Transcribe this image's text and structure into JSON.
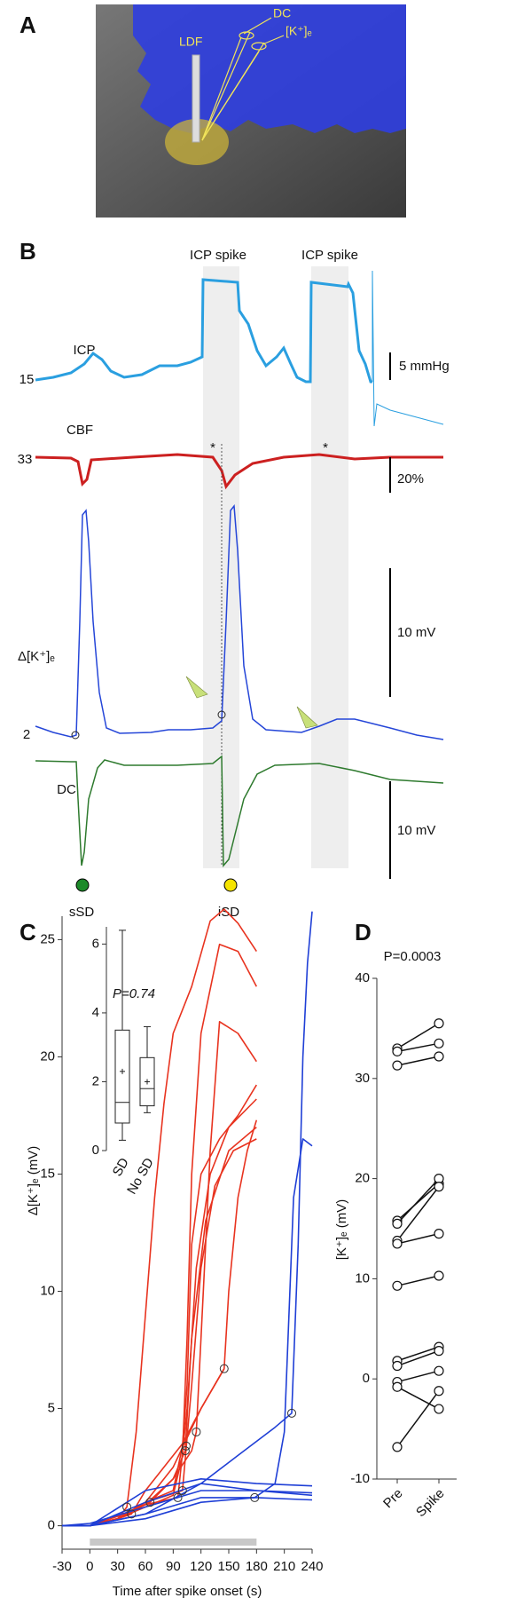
{
  "panel_a": {
    "label": "A",
    "annotations": [
      "LDF",
      "DC",
      "[K⁺]ₑ"
    ]
  },
  "panel_b": {
    "label": "B",
    "spike_labels": [
      "ICP spike",
      "ICP spike"
    ],
    "traces": [
      {
        "name": "ICP",
        "baseline": 15,
        "scale": "5 mmHg"
      },
      {
        "name": "CBF",
        "baseline": 33,
        "scale": "20%"
      },
      {
        "name": "Δ[K⁺]ₑ",
        "baseline": 2,
        "scale": "10 mV"
      },
      {
        "name": "DC",
        "scale": "10 mV"
      }
    ],
    "asterisks": [
      "*",
      "*"
    ],
    "events": [
      "sSD",
      "iSD"
    ]
  },
  "chart_data": [
    {
      "type": "line",
      "panel_label": "C",
      "xlabel": "Time after spike onset (s)",
      "ylabel": "Δ[K⁺]ₑ (mV)",
      "xlim": [
        -30,
        240
      ],
      "ylim": [
        -1,
        26
      ],
      "xticks": [
        -30,
        0,
        30,
        60,
        90,
        120,
        150,
        180,
        210,
        240
      ],
      "yticks": [
        0,
        5,
        10,
        15,
        20,
        25
      ],
      "shaded_span": [
        0,
        180
      ],
      "series": [
        {
          "color": "#e8331f",
          "x": [
            -30,
            0,
            30,
            40,
            50,
            60,
            70,
            80,
            90,
            110,
            130,
            145,
            160,
            180
          ],
          "values": [
            0,
            0,
            0.3,
            0.8,
            4,
            9,
            14,
            18,
            21,
            23,
            25.8,
            26.3,
            25.7,
            24.5
          ]
        },
        {
          "color": "#e8331f",
          "x": [
            -30,
            0,
            30,
            60,
            90,
            100,
            105,
            110,
            120,
            140,
            160,
            180
          ],
          "values": [
            0,
            0,
            0.3,
            0.8,
            1.3,
            3,
            8,
            15,
            21,
            24.8,
            24.5,
            23
          ]
        },
        {
          "color": "#e8331f",
          "x": [
            -30,
            0,
            30,
            60,
            90,
            110,
            115,
            120,
            130,
            140,
            160,
            180
          ],
          "values": [
            0,
            0,
            0.3,
            0.9,
            2,
            3.2,
            4,
            8,
            16,
            21.5,
            21,
            19.8
          ]
        },
        {
          "color": "#e8331f",
          "x": [
            -30,
            0,
            30,
            60,
            90,
            100,
            105,
            110,
            120,
            140,
            160,
            180
          ],
          "values": [
            0,
            0,
            0.3,
            1,
            1.5,
            3.4,
            6,
            12,
            15,
            16.5,
            17.5,
            18.8
          ]
        },
        {
          "color": "#e8331f",
          "x": [
            -30,
            0,
            30,
            60,
            90,
            120,
            145,
            150,
            160,
            170,
            180
          ],
          "values": [
            0,
            0,
            0.3,
            1,
            2.5,
            5,
            6.7,
            10,
            14,
            16,
            17.3
          ]
        },
        {
          "color": "#e8331f",
          "x": [
            -30,
            0,
            30,
            60,
            95,
            105,
            115,
            130,
            150,
            180
          ],
          "values": [
            0,
            0,
            0.3,
            0.9,
            1.2,
            5,
            11,
            15,
            17,
            18.2
          ]
        },
        {
          "color": "#e8331f",
          "x": [
            -30,
            0,
            30,
            60,
            100,
            110,
            120,
            135,
            155,
            180
          ],
          "values": [
            0,
            0,
            0.3,
            1,
            1.5,
            6,
            11,
            14.5,
            16,
            16.5
          ]
        },
        {
          "color": "#e8331f",
          "x": [
            -30,
            0,
            30,
            45,
            60,
            80,
            100,
            120,
            145
          ],
          "values": [
            0,
            0,
            0.3,
            0.5,
            1.5,
            2.5,
            3.5,
            5,
            6.7
          ]
        },
        {
          "color": "#e8331f",
          "x": [
            -30,
            0,
            30,
            65,
            90,
            103,
            110,
            125,
            150,
            180
          ],
          "values": [
            0,
            0,
            0.4,
            1,
            2,
            3.2,
            8,
            13,
            16,
            17
          ]
        },
        {
          "color": "#1f3fd6",
          "x": [
            -30,
            0,
            60,
            120,
            160,
            200,
            218,
            225,
            230,
            235,
            240
          ],
          "values": [
            0,
            0,
            0.5,
            1.8,
            3,
            4.2,
            4.8,
            12,
            20,
            24,
            26.2
          ]
        },
        {
          "color": "#1f3fd6",
          "x": [
            -30,
            0,
            60,
            120,
            178,
            200,
            210,
            220,
            230,
            240
          ],
          "values": [
            0,
            0,
            0.3,
            1,
            1.2,
            1.8,
            4,
            14,
            16.5,
            16.2
          ]
        },
        {
          "color": "#1f3fd6",
          "x": [
            -30,
            0,
            60,
            120,
            180,
            240
          ],
          "values": [
            0,
            0,
            1.5,
            2,
            1.8,
            1.7
          ]
        },
        {
          "color": "#1f3fd6",
          "x": [
            -30,
            0,
            60,
            120,
            180,
            240
          ],
          "values": [
            0,
            0,
            1,
            1.8,
            1.5,
            1.4
          ]
        },
        {
          "color": "#1f3fd6",
          "x": [
            -30,
            0,
            60,
            120,
            180,
            240
          ],
          "values": [
            0,
            0,
            0.5,
            1.2,
            1.2,
            1.1
          ]
        },
        {
          "color": "#1f3fd6",
          "x": [
            -30,
            0,
            60,
            120,
            180,
            240
          ],
          "values": [
            0,
            0.1,
            0.8,
            1.5,
            1.5,
            1.3
          ]
        },
        {
          "type": "scatter",
          "color": "#333333",
          "x": [
            40,
            45,
            65,
            95,
            100,
            103,
            104,
            115,
            145,
            178,
            218
          ],
          "values": [
            0.8,
            0.5,
            1.0,
            1.2,
            1.5,
            3.2,
            3.4,
            4.0,
            6.7,
            1.2,
            4.8
          ]
        }
      ]
    },
    {
      "type": "box",
      "annotation": "P=0.74",
      "categories": [
        "SD",
        "No SD"
      ],
      "ylim": [
        0,
        6.5
      ],
      "yticks": [
        0,
        2,
        4,
        6
      ],
      "min": [
        0.3,
        1.1
      ],
      "q1": [
        0.8,
        1.3
      ],
      "median": [
        1.4,
        1.8
      ],
      "q3": [
        3.5,
        2.7
      ],
      "max": [
        6.4,
        3.6
      ],
      "mean": [
        2.3,
        2.0
      ]
    },
    {
      "type": "dot",
      "panel_label": "D",
      "annotation": "P=0.0003",
      "ylabel": "[K⁺]ₑ (mV)",
      "categories": [
        "Pre",
        "Spike"
      ],
      "ylim": [
        -10,
        40
      ],
      "yticks": [
        -10,
        0,
        10,
        20,
        30,
        40
      ],
      "series": [
        {
          "values": [
            33,
            35.5
          ]
        },
        {
          "values": [
            32.7,
            33.5
          ]
        },
        {
          "values": [
            31.3,
            32.2
          ]
        },
        {
          "values": [
            15.8,
            19.5
          ]
        },
        {
          "values": [
            15.5,
            20
          ]
        },
        {
          "values": [
            13.8,
            19.2
          ]
        },
        {
          "values": [
            13.5,
            14.5
          ]
        },
        {
          "values": [
            9.3,
            10.3
          ]
        },
        {
          "values": [
            1.8,
            3.2
          ]
        },
        {
          "values": [
            1.3,
            2.8
          ]
        },
        {
          "values": [
            -0.3,
            0.8
          ]
        },
        {
          "values": [
            -0.8,
            -3
          ]
        },
        {
          "values": [
            -6.8,
            -1.2
          ]
        }
      ]
    }
  ]
}
